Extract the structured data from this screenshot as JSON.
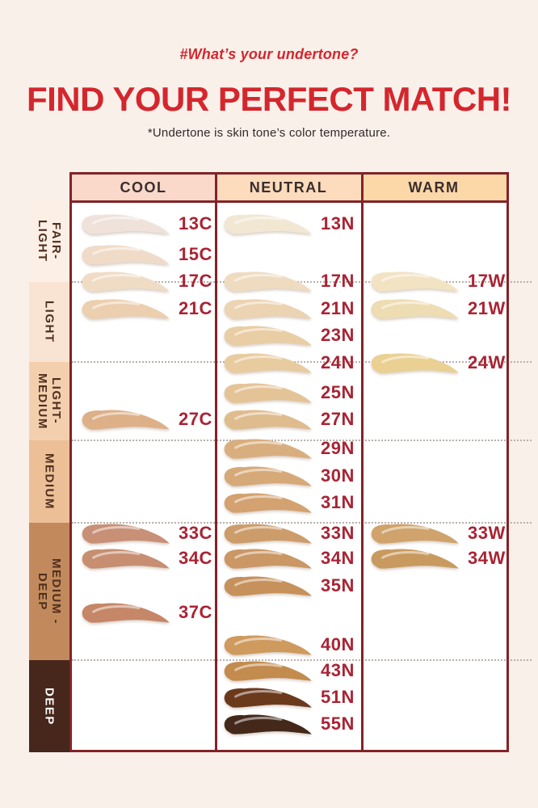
{
  "header": {
    "hashtag": "#What’s your undertone?",
    "title": "FIND YOUR PERFECT MATCH!",
    "subtitle": "*Undertone is skin tone’s color temperature."
  },
  "palette": {
    "page_bg": "#faf0ea",
    "accent_red": "#d5262d",
    "code_red": "#a92434",
    "table_border": "#822328",
    "dotted_line": "#b8b0a9",
    "header_text": "#3a2e2e"
  },
  "table": {
    "columns": [
      {
        "id": "cool",
        "label": "COOL",
        "header_bg": "#fad9ca"
      },
      {
        "id": "neutral",
        "label": "NEUTRAL",
        "header_bg": "#fcdcbc"
      },
      {
        "id": "warm",
        "label": "WARM",
        "header_bg": "#fcd8a9"
      }
    ],
    "depth_sections": [
      {
        "id": "fair-light",
        "label": "FAIR-LIGHT",
        "lines": [
          "FAIR-",
          "LIGHT"
        ],
        "bg": "#fcefe6",
        "text_color": "#4e2f1e"
      },
      {
        "id": "light",
        "label": "LIGHT",
        "lines": [
          "LIGHT"
        ],
        "bg": "#f9e4d3",
        "text_color": "#4e2f1e"
      },
      {
        "id": "light-medium",
        "label": "LIGHT-MEDIUM",
        "lines": [
          "LIGHT-",
          "MEDIUM"
        ],
        "bg": "#f4cfae",
        "text_color": "#4e2f1e"
      },
      {
        "id": "medium",
        "label": "MEDIUM",
        "lines": [
          "MEDIUM"
        ],
        "bg": "#ecbf97",
        "text_color": "#4e2f1e"
      },
      {
        "id": "medium-deep",
        "label": "MEDIUM-DEEP",
        "lines": [
          "MEDIUM -",
          "DEEP"
        ],
        "bg": "#c28a5c",
        "text_color": "#4e2f1e"
      },
      {
        "id": "deep",
        "label": "DEEP",
        "lines": [
          "DEEP"
        ],
        "bg": "#47261c",
        "text_color": "#ffffff"
      }
    ]
  },
  "shades": [
    {
      "code": "13C",
      "column": "cool",
      "row": 13,
      "color": "#efe2db"
    },
    {
      "code": "15C",
      "column": "cool",
      "row": 15,
      "color": "#f0dbc9"
    },
    {
      "code": "17C",
      "column": "cool",
      "row": 17,
      "color": "#f0dcc4"
    },
    {
      "code": "21C",
      "column": "cool",
      "row": 21,
      "color": "#eccfae"
    },
    {
      "code": "27C",
      "column": "cool",
      "row": 27,
      "color": "#ddb088"
    },
    {
      "code": "33C",
      "column": "cool",
      "row": 33,
      "color": "#c89077"
    },
    {
      "code": "34C",
      "column": "cool",
      "row": 34,
      "color": "#c78e72"
    },
    {
      "code": "37C",
      "column": "cool",
      "row": 37,
      "color": "#c58767"
    },
    {
      "code": "13N",
      "column": "neutral",
      "row": 13,
      "color": "#f1e7d3"
    },
    {
      "code": "17N",
      "column": "neutral",
      "row": 17,
      "color": "#efdcc0"
    },
    {
      "code": "21N",
      "column": "neutral",
      "row": 21,
      "color": "#ecd3b1"
    },
    {
      "code": "23N",
      "column": "neutral",
      "row": 23,
      "color": "#e9cda4"
    },
    {
      "code": "24N",
      "column": "neutral",
      "row": 24,
      "color": "#e8cb9f"
    },
    {
      "code": "25N",
      "column": "neutral",
      "row": 25,
      "color": "#e4c397"
    },
    {
      "code": "27N",
      "column": "neutral",
      "row": 27,
      "color": "#dfbc8e"
    },
    {
      "code": "29N",
      "column": "neutral",
      "row": 29,
      "color": "#d9ae7f"
    },
    {
      "code": "30N",
      "column": "neutral",
      "row": 30,
      "color": "#d6a979"
    },
    {
      "code": "31N",
      "column": "neutral",
      "row": 31,
      "color": "#d3a270"
    },
    {
      "code": "33N",
      "column": "neutral",
      "row": 33,
      "color": "#cd9c6b"
    },
    {
      "code": "34N",
      "column": "neutral",
      "row": 34,
      "color": "#ca9765"
    },
    {
      "code": "35N",
      "column": "neutral",
      "row": 35,
      "color": "#c6915a"
    },
    {
      "code": "40N",
      "column": "neutral",
      "row": 40,
      "color": "#cf9a5e"
    },
    {
      "code": "43N",
      "column": "neutral",
      "row": 43,
      "color": "#c38b4e"
    },
    {
      "code": "51N",
      "column": "neutral",
      "row": 51,
      "color": "#6b3a1c"
    },
    {
      "code": "55N",
      "column": "neutral",
      "row": 55,
      "color": "#44291a"
    },
    {
      "code": "17W",
      "column": "warm",
      "row": 17,
      "color": "#f2e3c3"
    },
    {
      "code": "21W",
      "column": "warm",
      "row": 21,
      "color": "#eedcb2"
    },
    {
      "code": "24W",
      "column": "warm",
      "row": 24,
      "color": "#ead093"
    },
    {
      "code": "33W",
      "column": "warm",
      "row": 33,
      "color": "#cfa36b"
    },
    {
      "code": "34W",
      "column": "warm",
      "row": 34,
      "color": "#c99a5f"
    }
  ],
  "chart_data": {
    "type": "table",
    "title": "FIND YOUR PERFECT MATCH!",
    "subtitle": "#What’s your undertone?",
    "note": "*Undertone is skin tone’s color temperature.",
    "columns": [
      "COOL",
      "NEUTRAL",
      "WARM"
    ],
    "row_groups": [
      "FAIR-LIGHT",
      "LIGHT",
      "LIGHT-MEDIUM",
      "MEDIUM",
      "MEDIUM-DEEP",
      "DEEP"
    ],
    "cells": {
      "FAIR-LIGHT": {
        "COOL": [
          "13C",
          "15C"
        ],
        "NEUTRAL": [
          "13N"
        ],
        "WARM": []
      },
      "LIGHT": {
        "COOL": [
          "17C",
          "21C"
        ],
        "NEUTRAL": [
          "17N",
          "21N",
          "23N"
        ],
        "WARM": [
          "17W",
          "21W"
        ]
      },
      "LIGHT-MEDIUM": {
        "COOL": [
          "27C"
        ],
        "NEUTRAL": [
          "24N",
          "25N",
          "27N"
        ],
        "WARM": [
          "24W"
        ]
      },
      "MEDIUM": {
        "COOL": [],
        "NEUTRAL": [
          "29N",
          "30N",
          "31N"
        ],
        "WARM": []
      },
      "MEDIUM-DEEP": {
        "COOL": [
          "33C",
          "34C",
          "37C"
        ],
        "NEUTRAL": [
          "33N",
          "34N",
          "35N",
          "40N"
        ],
        "WARM": [
          "33W",
          "34W"
        ]
      },
      "DEEP": {
        "COOL": [],
        "NEUTRAL": [
          "43N",
          "51N",
          "55N"
        ],
        "WARM": []
      }
    }
  }
}
